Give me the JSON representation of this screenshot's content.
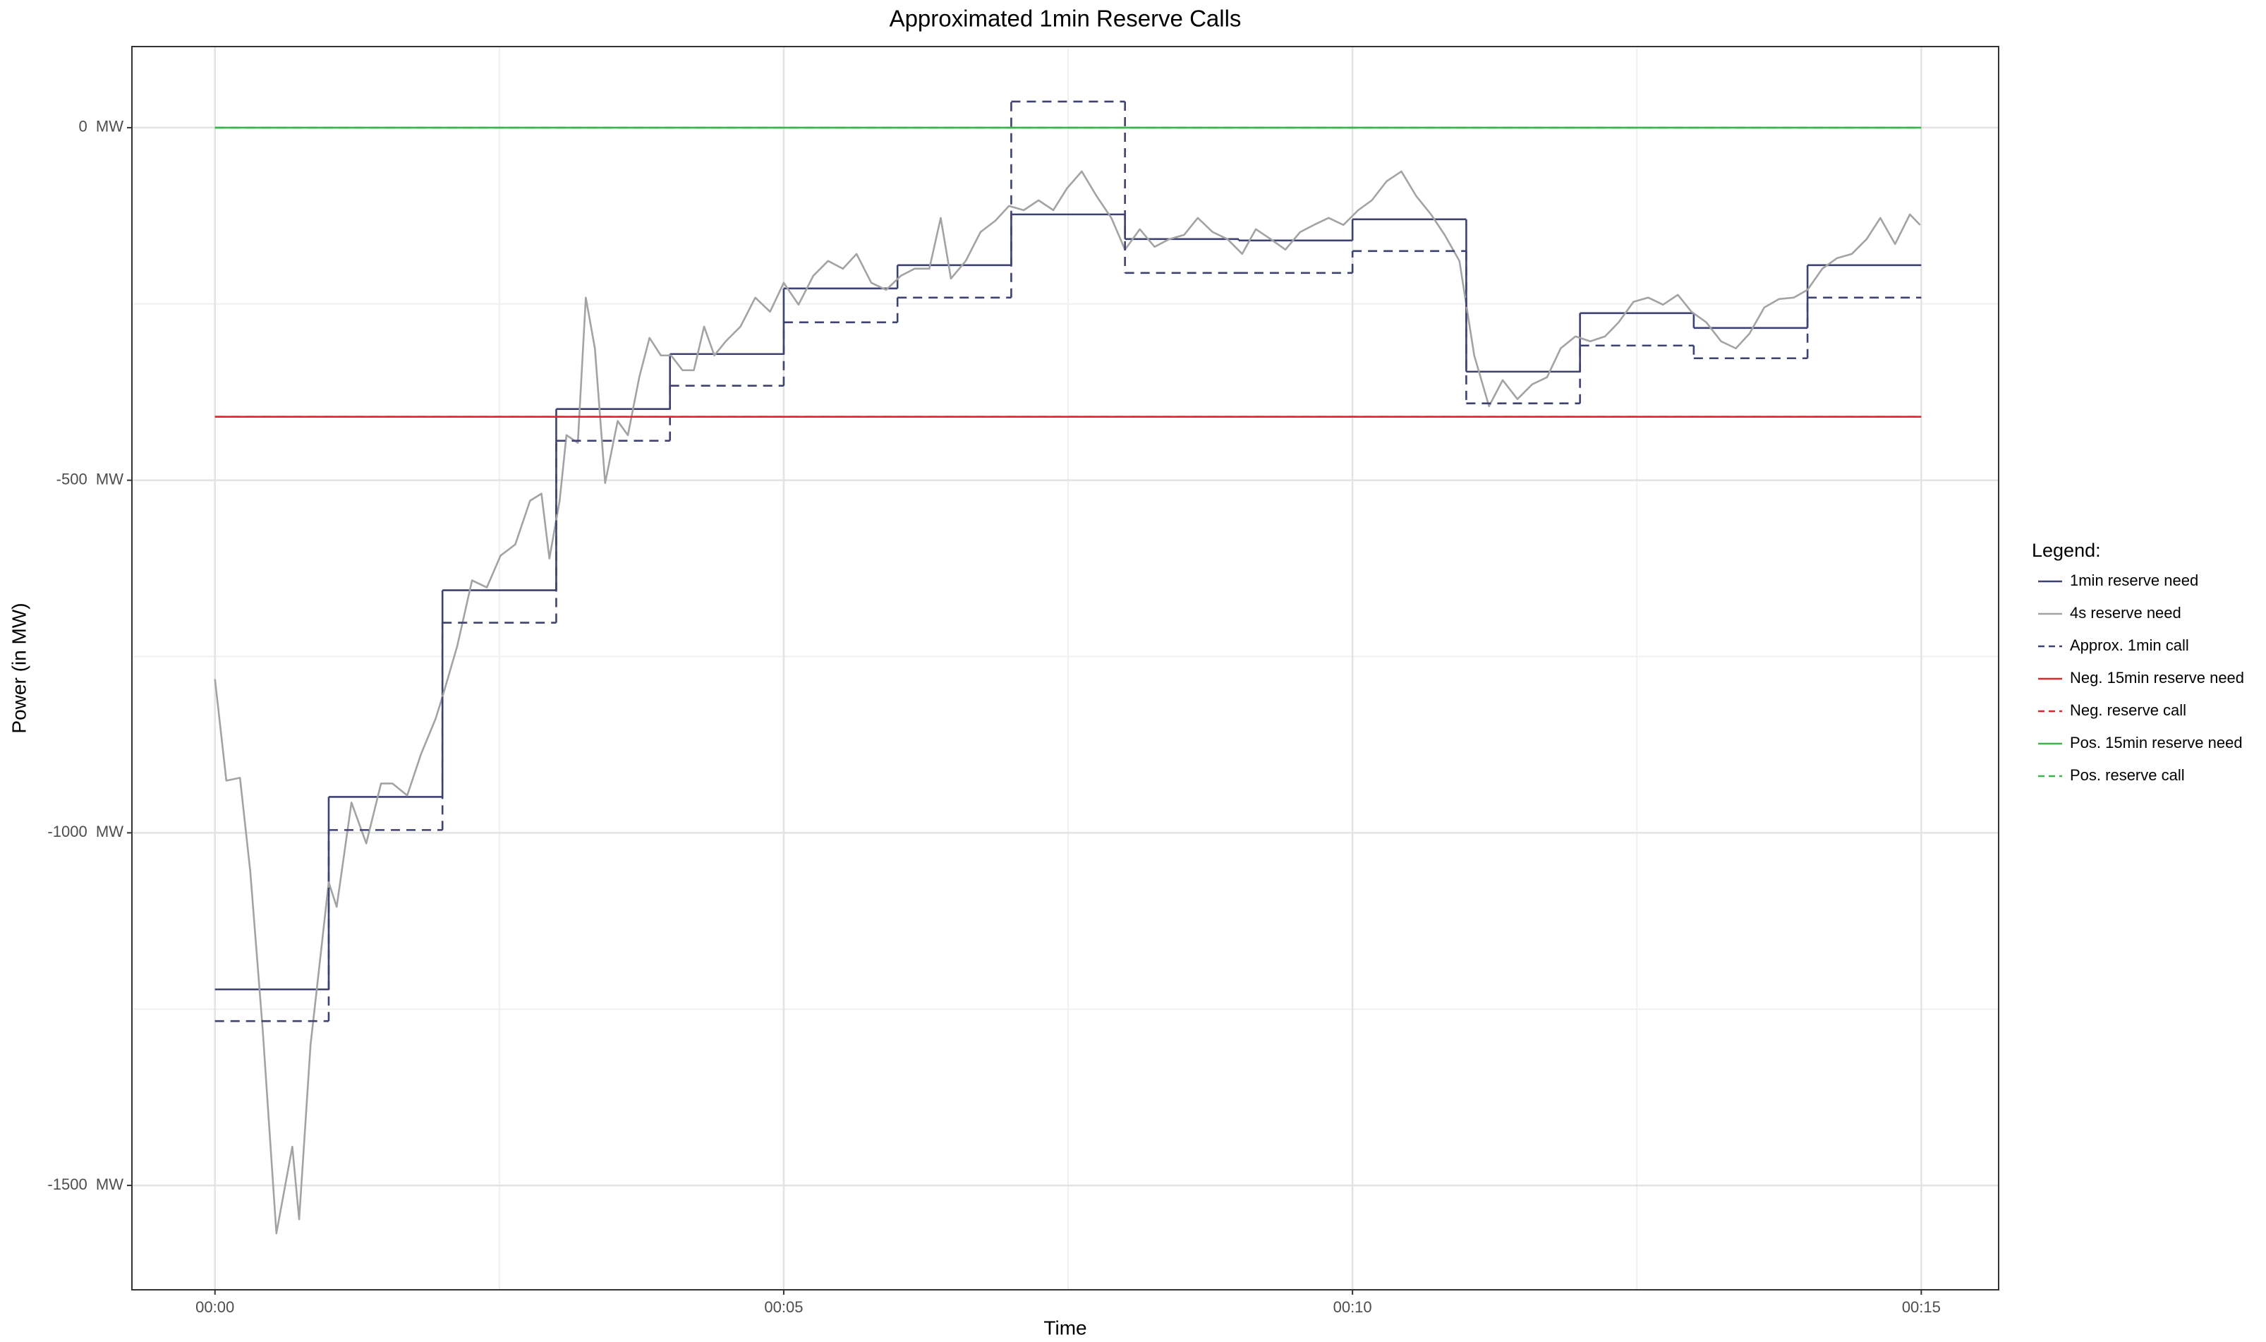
{
  "chart_data": {
    "type": "line",
    "title": "Approximated 1min Reserve Calls",
    "x_label": "Time",
    "y_label": "Power (in MW)",
    "legend_title": "Legend:",
    "legend": "right",
    "grid": true,
    "minor_grid": true,
    "xlim": [
      -0.73,
      15.68
    ],
    "ylim": [
      -1648,
      115
    ],
    "xticks": [
      {
        "value": 0,
        "label": "00:00"
      },
      {
        "value": 5,
        "label": "00:05"
      },
      {
        "value": 10,
        "label": "00:10"
      },
      {
        "value": 15,
        "label": "00:15"
      }
    ],
    "yticks": [
      {
        "value": -1500,
        "label": "-1500  MW"
      },
      {
        "value": -1000,
        "label": "-1000  MW"
      },
      {
        "value": -500,
        "label": "-500  MW"
      },
      {
        "value": 0,
        "label": "0  MW"
      }
    ],
    "series": [
      {
        "name": "1min reserve need",
        "color": "#3d4270",
        "linestyle": "solid",
        "step": true,
        "x": [
          0,
          1,
          2,
          3,
          4,
          5,
          6,
          7,
          8,
          9,
          10,
          11,
          12,
          13,
          14
        ],
        "values": [
          -1222,
          -949,
          -656,
          -399,
          -321,
          -228,
          -195,
          -123,
          -158,
          -160,
          -130,
          -346,
          -263,
          -284,
          -195
        ]
      },
      {
        "name": "4s reserve need",
        "color": "#a3a3a3",
        "linestyle": "solid",
        "step": false,
        "x": [
          0,
          0.1,
          0.22,
          0.31,
          0.42,
          0.54,
          0.68,
          0.74,
          0.84,
          0.94,
          1.0,
          1.07,
          1.2,
          1.33,
          1.46,
          1.56,
          1.69,
          1.81,
          1.94,
          2.0,
          2.13,
          2.26,
          2.39,
          2.51,
          2.64,
          2.77,
          2.87,
          2.94,
          3.03,
          3.09,
          3.19,
          3.26,
          3.34,
          3.43,
          3.54,
          3.63,
          3.73,
          3.82,
          3.92,
          4.01,
          4.11,
          4.21,
          4.3,
          4.39,
          4.49,
          4.62,
          4.75,
          4.88,
          5.0,
          5.13,
          5.26,
          5.39,
          5.52,
          5.64,
          5.77,
          5.9,
          6.03,
          6.15,
          6.28,
          6.38,
          6.47,
          6.6,
          6.73,
          6.86,
          6.98,
          7.11,
          7.24,
          7.37,
          7.49,
          7.62,
          7.75,
          7.88,
          8.0,
          8.13,
          8.26,
          8.39,
          8.52,
          8.64,
          8.77,
          8.9,
          9.03,
          9.15,
          9.28,
          9.41,
          9.54,
          9.66,
          9.79,
          9.92,
          10.05,
          10.17,
          10.3,
          10.43,
          10.56,
          10.69,
          10.81,
          10.94,
          11.07,
          11.2,
          11.32,
          11.45,
          11.58,
          11.71,
          11.83,
          11.96,
          12.09,
          12.22,
          12.34,
          12.47,
          12.6,
          12.73,
          12.86,
          12.98,
          13.11,
          13.24,
          13.37,
          13.49,
          13.62,
          13.75,
          13.88,
          14.0,
          14.13,
          14.26,
          14.39,
          14.52,
          14.64,
          14.77,
          14.9,
          14.99
        ],
        "values": [
          -782,
          -926,
          -922,
          -1054,
          -1280,
          -1568,
          -1445,
          -1548,
          -1301,
          -1157,
          -1070,
          -1105,
          -957,
          -1015,
          -930,
          -930,
          -947,
          -889,
          -838,
          -807,
          -735,
          -642,
          -652,
          -607,
          -591,
          -529,
          -519,
          -611,
          -529,
          -436,
          -447,
          -241,
          -313,
          -504,
          -416,
          -436,
          -354,
          -298,
          -323,
          -323,
          -344,
          -344,
          -282,
          -323,
          -303,
          -282,
          -241,
          -261,
          -220,
          -251,
          -210,
          -189,
          -200,
          -179,
          -220,
          -230,
          -210,
          -200,
          -200,
          -128,
          -214,
          -189,
          -148,
          -132,
          -111,
          -117,
          -103,
          -117,
          -86,
          -62,
          -97,
          -128,
          -173,
          -144,
          -169,
          -158,
          -152,
          -128,
          -148,
          -158,
          -179,
          -144,
          -158,
          -173,
          -148,
          -138,
          -128,
          -138,
          -117,
          -103,
          -76,
          -62,
          -97,
          -123,
          -152,
          -189,
          -323,
          -395,
          -358,
          -385,
          -364,
          -354,
          -313,
          -296,
          -303,
          -296,
          -276,
          -247,
          -241,
          -251,
          -237,
          -261,
          -276,
          -303,
          -313,
          -292,
          -255,
          -243,
          -241,
          -230,
          -200,
          -185,
          -179,
          -158,
          -128,
          -165,
          -123,
          -138
        ]
      },
      {
        "name": "Approx. 1min call",
        "color": "#3d4270",
        "linestyle": "dashed",
        "step": true,
        "x": [
          0,
          1,
          2,
          3,
          4,
          5,
          6,
          7,
          8,
          9,
          10,
          11,
          12,
          13,
          14
        ],
        "values": [
          -1267,
          -996,
          -702,
          -444,
          -366,
          -276,
          -241,
          37,
          -206,
          -206,
          -175,
          -391,
          -309,
          -327,
          -241
        ]
      },
      {
        "name": "Neg. 15min reserve need",
        "color": "#e0252b",
        "linestyle": "solid",
        "step": false,
        "x": [
          0,
          15
        ],
        "values": [
          -410,
          -410
        ]
      },
      {
        "name": "Neg. reserve call",
        "color": "#e0252b",
        "linestyle": "dashed",
        "step": false,
        "x": [
          0,
          15
        ],
        "values": [
          -410,
          -410
        ]
      },
      {
        "name": "Pos. 15min reserve need",
        "color": "#3cb44b",
        "linestyle": "solid",
        "step": false,
        "x": [
          0,
          15
        ],
        "values": [
          0,
          0
        ]
      },
      {
        "name": "Pos. reserve call",
        "color": "#3cb44b",
        "linestyle": "dashed",
        "step": false,
        "x": [
          0,
          15
        ],
        "values": [
          0,
          0
        ]
      }
    ]
  }
}
